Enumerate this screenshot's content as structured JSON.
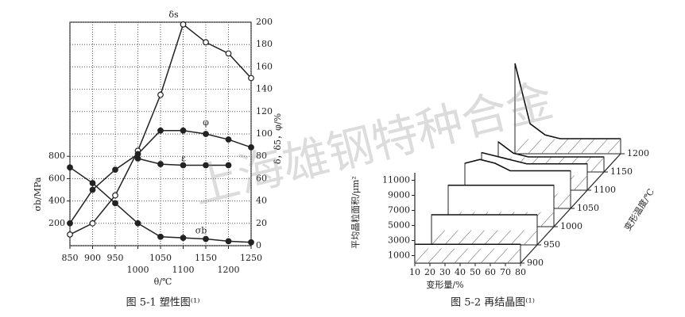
{
  "chart_data": [
    {
      "type": "line",
      "caption": "图 5-1  塑性图⁽¹⁾",
      "xlabel": "θ/℃",
      "ylabel": "σb/MPa",
      "y2label": "δ，δ5，φ/%",
      "x": [
        850,
        900,
        950,
        1000,
        1050,
        1100,
        1150,
        1200,
        1250
      ],
      "xlim": [
        850,
        1250
      ],
      "xticks": [
        850,
        900,
        950,
        1000,
        1050,
        1100,
        1150,
        1200,
        1250
      ],
      "ylim": [
        0,
        2000
      ],
      "yticks": [
        200,
        400,
        600,
        800
      ],
      "y2lim": [
        0,
        200
      ],
      "y2ticks": [
        0,
        20,
        40,
        60,
        80,
        100,
        120,
        140,
        160,
        180,
        200
      ],
      "grid": true,
      "series": [
        {
          "name": "δs",
          "axis": "y2",
          "marker": "open",
          "color": "#222",
          "values": [
            10,
            20,
            45,
            85,
            135,
            198,
            182,
            172,
            150
          ]
        },
        {
          "name": "φ",
          "axis": "y2",
          "marker": "filled",
          "color": "#222",
          "values": [
            20,
            50,
            68,
            82,
            103,
            103,
            100,
            95,
            88
          ]
        },
        {
          "name": "ε",
          "axis": "y2",
          "marker": "filled",
          "color": "#222",
          "values": [
            null,
            null,
            null,
            78,
            73,
            72,
            72,
            72,
            null
          ]
        },
        {
          "name": "σb",
          "axis": "y",
          "marker": "filled",
          "color": "#222",
          "values": [
            700,
            560,
            380,
            200,
            80,
            70,
            60,
            40,
            30
          ]
        }
      ]
    },
    {
      "type": "waterfall",
      "caption": "图 5-2  再结晶图⁽¹⁾",
      "xlabel": "变形量/%",
      "ylabel": "平均晶粒面积/μm²",
      "zlabel": "变形温度/℃",
      "x": [
        10,
        20,
        30,
        40,
        50,
        60,
        70,
        80
      ],
      "xticks": [
        10,
        20,
        30,
        40,
        50,
        60,
        70,
        80
      ],
      "ylim": [
        0,
        12000
      ],
      "yticks": [
        1000,
        3000,
        5000,
        7000,
        9000,
        11000
      ],
      "z": [
        900,
        950,
        1000,
        1050,
        1100,
        1150,
        1200
      ],
      "values": [
        [
          2500,
          2500,
          2500,
          2500,
          2500,
          2500,
          2500,
          2500
        ],
        [
          4000,
          4000,
          4000,
          4000,
          4000,
          4000,
          4000,
          4000
        ],
        [
          5500,
          5500,
          5500,
          5500,
          5500,
          5500,
          5500,
          5500
        ],
        [
          6000,
          6500,
          6000,
          5000,
          5000,
          5000,
          5000,
          5000
        ],
        [
          5000,
          4500,
          4000,
          3500,
          3500,
          3500,
          3500,
          3500
        ],
        [
          4000,
          2500,
          2000,
          2000,
          2000,
          2000,
          2000,
          2000
        ],
        [
          12000,
          4000,
          2500,
          2000,
          2000,
          2000,
          2000,
          2000
        ]
      ]
    }
  ],
  "watermark": "上海雄钢特种合金"
}
